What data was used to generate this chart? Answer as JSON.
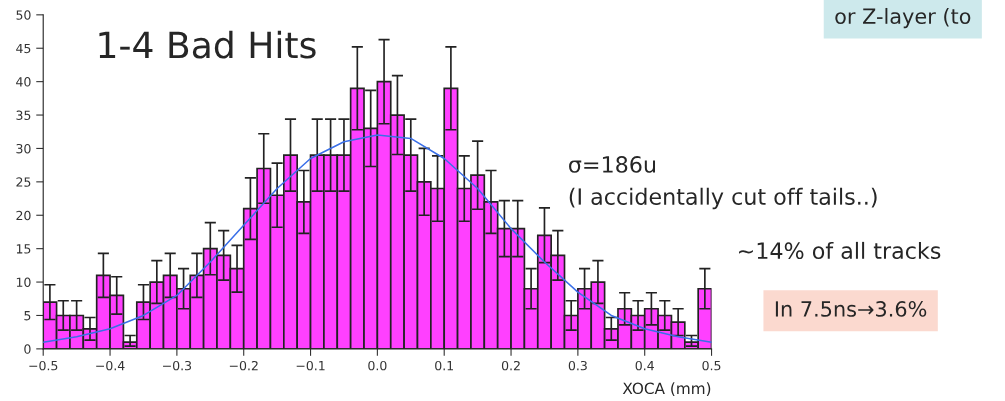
{
  "chart_data": {
    "type": "histogram",
    "xlabel": "XOCA (mm)",
    "bins": [
      -0.5,
      -0.48,
      -0.46,
      -0.44,
      -0.42,
      -0.4,
      -0.38,
      -0.36,
      -0.34,
      -0.32,
      -0.3,
      -0.28,
      -0.26,
      -0.24,
      -0.22,
      -0.2,
      -0.18,
      -0.16,
      -0.14,
      -0.12,
      -0.1,
      -0.08,
      -0.06,
      -0.04,
      -0.02,
      0.0,
      0.02,
      0.04,
      0.06,
      0.08,
      0.1,
      0.12,
      0.14,
      0.16,
      0.18,
      0.2,
      0.22,
      0.24,
      0.26,
      0.28,
      0.3,
      0.32,
      0.34,
      0.36,
      0.38,
      0.4,
      0.42,
      0.44,
      0.46,
      0.48,
      0.5
    ],
    "values": [
      7,
      5,
      5,
      3,
      11,
      8,
      1,
      7,
      10,
      11,
      9,
      11,
      15,
      14,
      12,
      21,
      27,
      23,
      29,
      22,
      29,
      29,
      29,
      39,
      33,
      40,
      35,
      29,
      25,
      24,
      39,
      24,
      26,
      22,
      18,
      18,
      9,
      17,
      14,
      5,
      9,
      10,
      3,
      6,
      5,
      6,
      5,
      4,
      1,
      9
    ],
    "errors": [
      2.6,
      2.2,
      2.2,
      1.7,
      3.3,
      2.8,
      [
        0.4,
        2
      ],
      2.6,
      3.2,
      3.3,
      3,
      3.3,
      3.9,
      3.7,
      3.5,
      4.6,
      5.2,
      4.8,
      5.4,
      4.7,
      5.4,
      5.4,
      5.4,
      6.2,
      5.7,
      6.3,
      5.9,
      5.4,
      5,
      4.9,
      6.2,
      4.9,
      5.1,
      4.7,
      4.2,
      4.2,
      3,
      4.1,
      3.7,
      2.2,
      3,
      3.2,
      1.7,
      2.4,
      2.2,
      2.4,
      2.2,
      2,
      [
        0.4,
        2
      ],
      3
    ],
    "color": "#ff40ff",
    "series": [
      {
        "type": "line",
        "color": "#3a6fe8",
        "x": [
          -0.5,
          -0.45,
          -0.4,
          -0.35,
          -0.3,
          -0.25,
          -0.2,
          -0.15,
          -0.1,
          -0.05,
          0.0,
          0.05,
          0.1,
          0.15,
          0.2,
          0.25,
          0.3,
          0.35,
          0.4,
          0.45,
          0.5
        ],
        "values": [
          1,
          1.8,
          3,
          5,
          8,
          13,
          18.5,
          24,
          28.5,
          31,
          32,
          31.5,
          28.5,
          24,
          18,
          13,
          8.5,
          5,
          3,
          1.8,
          1
        ]
      }
    ],
    "xlim": [
      -0.5,
      0.5
    ],
    "xticks": [
      {
        "value": -0.5,
        "label": "−0.5"
      },
      {
        "value": -0.4,
        "label": "−0.4"
      },
      {
        "value": -0.3,
        "label": "−0.3"
      },
      {
        "value": -0.2,
        "label": "−0.2"
      },
      {
        "value": -0.1,
        "label": "−0.1"
      },
      {
        "value": 0.0,
        "label": "0.0"
      },
      {
        "value": 0.1,
        "label": "0.1"
      },
      {
        "value": 0.2,
        "label": "0.2"
      },
      {
        "value": 0.3,
        "label": "0.3"
      },
      {
        "value": 0.4,
        "label": "0.4"
      },
      {
        "value": 0.5,
        "label": "0.5"
      }
    ],
    "ylim": [
      0,
      50
    ],
    "yticks": [
      0,
      5,
      10,
      15,
      20,
      25,
      30,
      35,
      40,
      45,
      50
    ],
    "grid": false,
    "annotations": [
      "1-4 Bad Hits",
      "σ=186u",
      "(I accidentally cut off tails..)",
      "~14% of all tracks",
      "In 7.5ns→3.6%",
      "or Z-layer (to"
    ]
  }
}
